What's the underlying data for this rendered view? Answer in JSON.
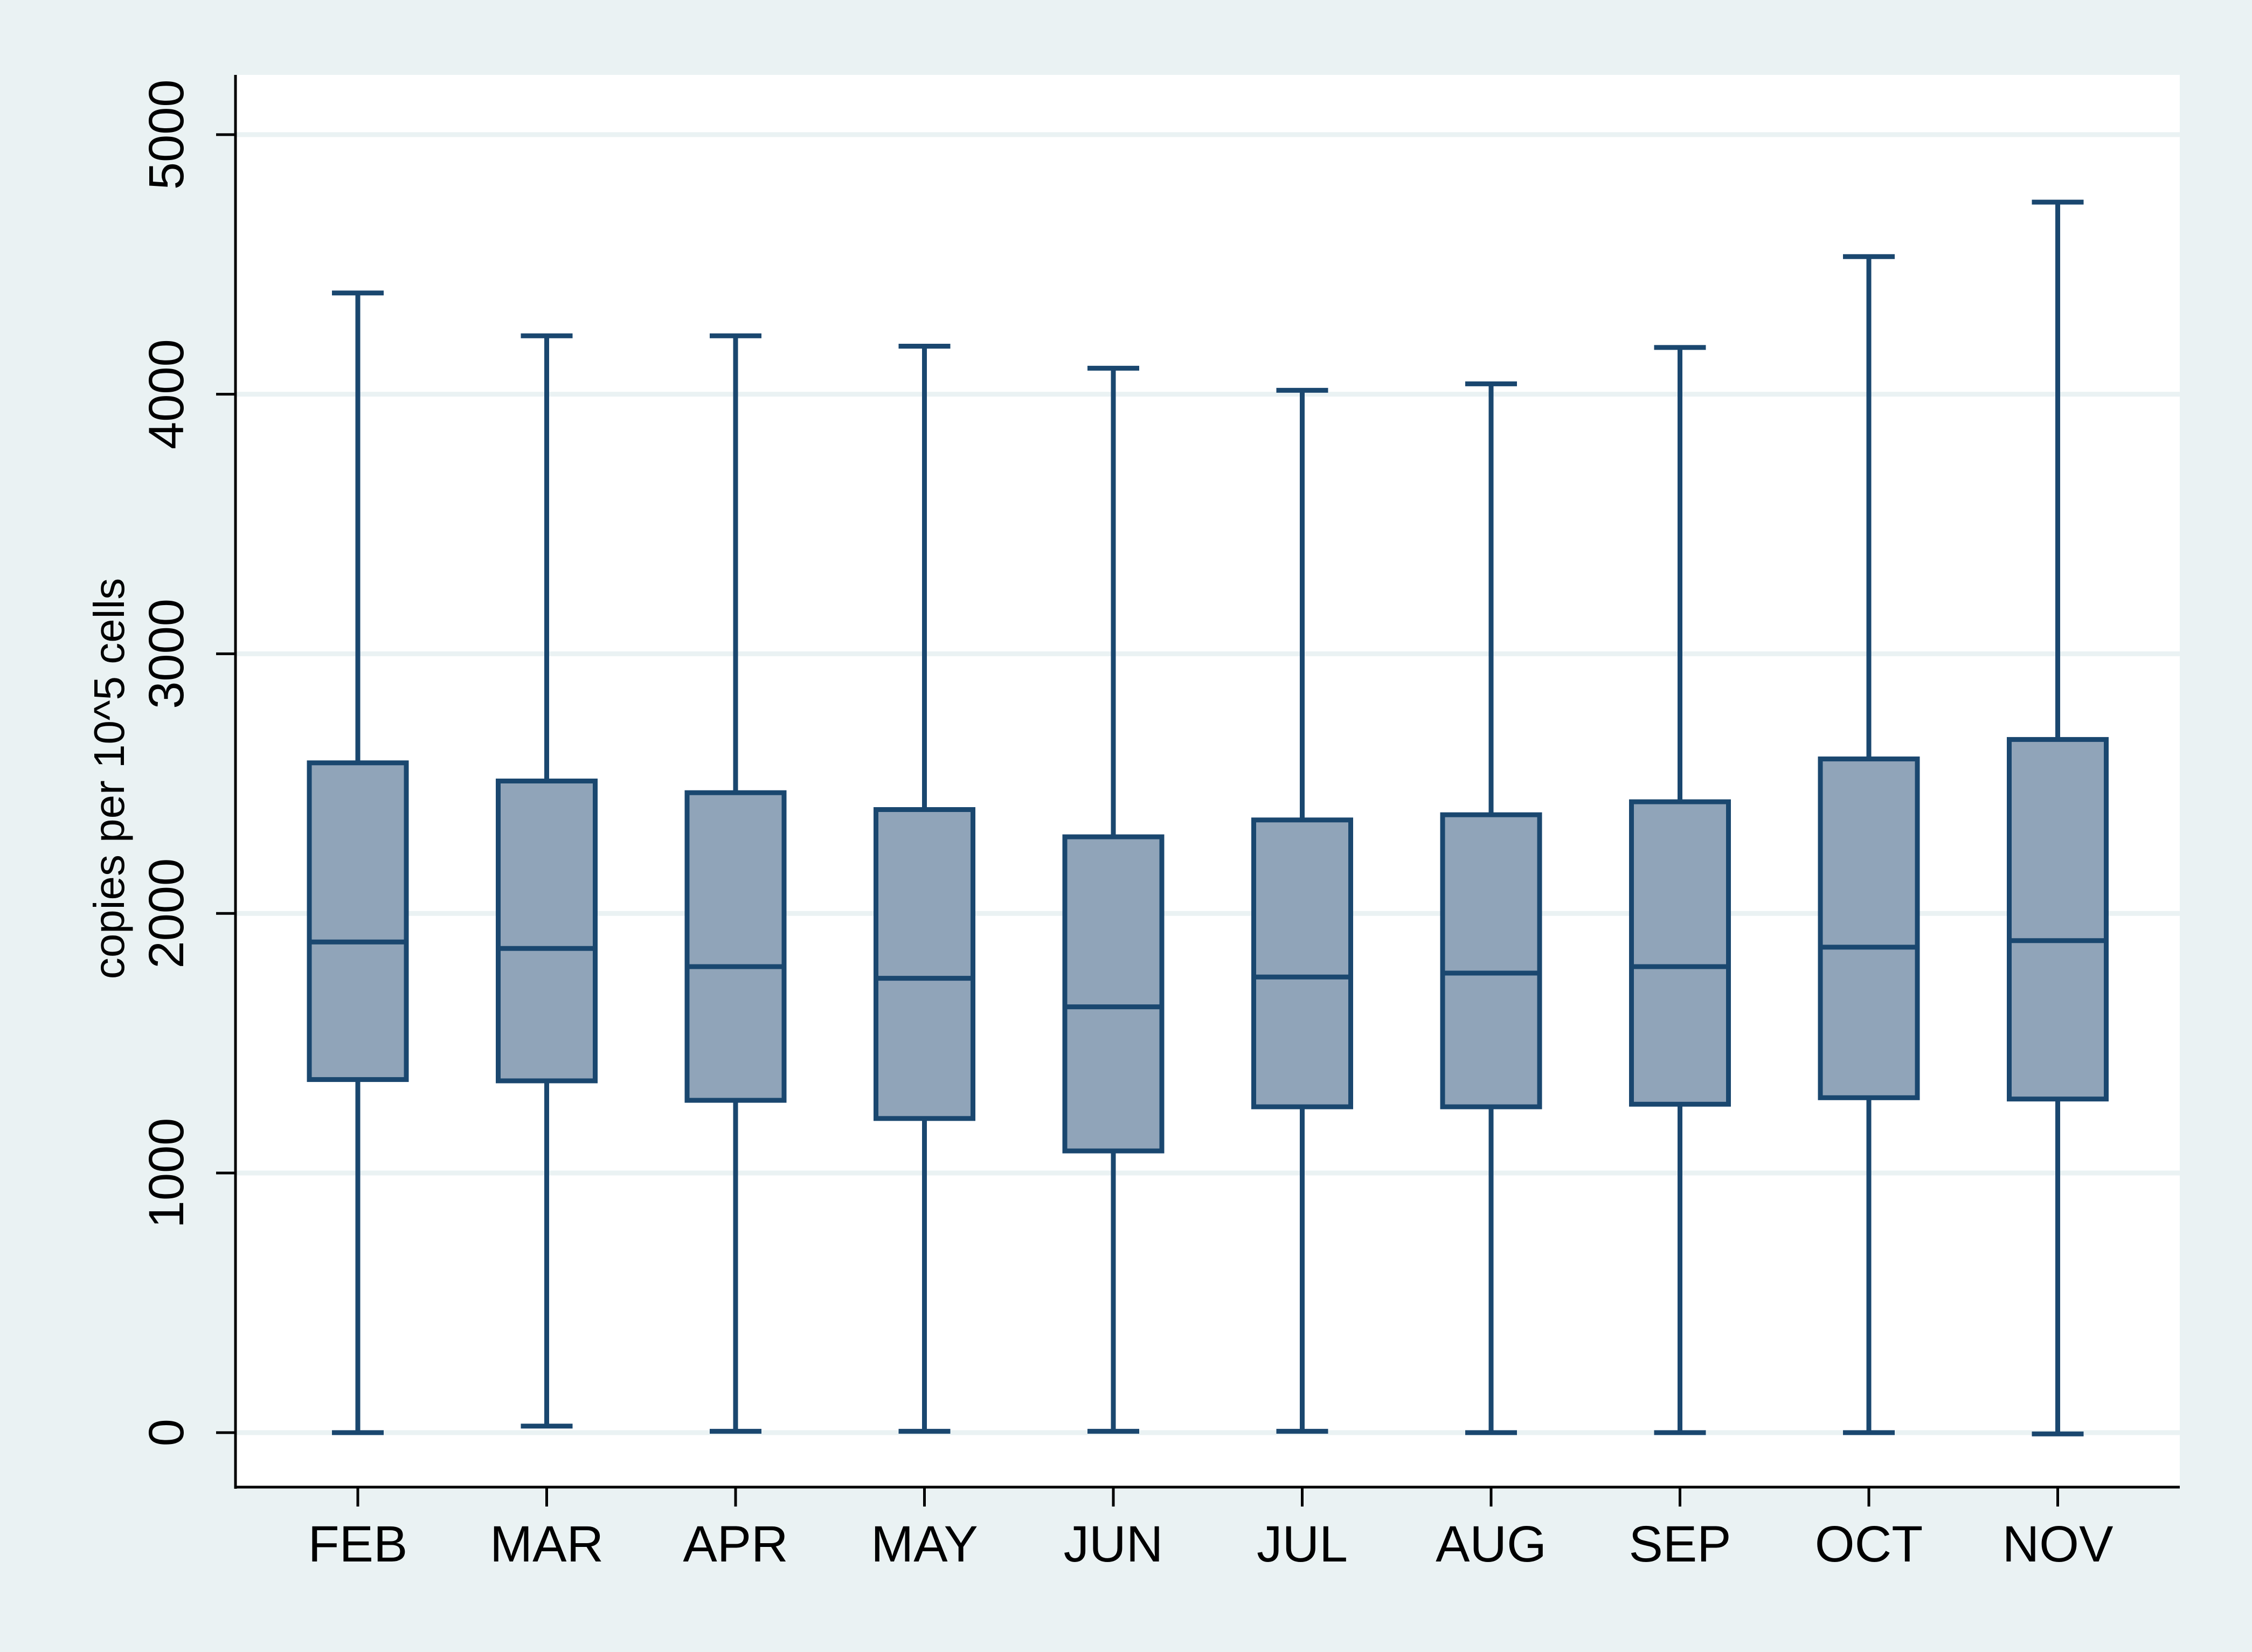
{
  "colors": {
    "outer_background": "#EAF2F3",
    "plot_background": "#FFFFFF",
    "gridline": "#EAF2F3",
    "box_fill": "#90A4B9",
    "box_stroke": "#1A476F",
    "axis": "#000000"
  },
  "chart_data": {
    "type": "boxplot",
    "title": "",
    "xlabel": "",
    "ylabel": "copies per 10^5 cells",
    "ylim": [
      -210,
      5230
    ],
    "yticks": [
      0,
      1000,
      2000,
      3000,
      4000,
      5000
    ],
    "grid": true,
    "legend": "none",
    "categories": [
      "FEB",
      "MAR",
      "APR",
      "MAY",
      "JUN",
      "JUL",
      "AUG",
      "SEP",
      "OCT",
      "NOV"
    ],
    "boxes": [
      {
        "label": "FEB",
        "whisker_low": 0,
        "q1": 1360,
        "median": 1890,
        "q3": 2580,
        "whisker_high": 4390
      },
      {
        "label": "MAR",
        "whisker_low": 25,
        "q1": 1355,
        "median": 1865,
        "q3": 2510,
        "whisker_high": 4225
      },
      {
        "label": "APR",
        "whisker_low": 5,
        "q1": 1280,
        "median": 1795,
        "q3": 2465,
        "whisker_high": 4225
      },
      {
        "label": "MAY",
        "whisker_low": 5,
        "q1": 1210,
        "median": 1750,
        "q3": 2400,
        "whisker_high": 4185
      },
      {
        "label": "JUN",
        "whisker_low": 5,
        "q1": 1085,
        "median": 1640,
        "q3": 2295,
        "whisker_high": 4100
      },
      {
        "label": "JUL",
        "whisker_low": 5,
        "q1": 1255,
        "median": 1755,
        "q3": 2360,
        "whisker_high": 4015
      },
      {
        "label": "AUG",
        "whisker_low": 0,
        "q1": 1255,
        "median": 1770,
        "q3": 2380,
        "whisker_high": 4040
      },
      {
        "label": "SEP",
        "whisker_low": 0,
        "q1": 1265,
        "median": 1795,
        "q3": 2430,
        "whisker_high": 4180
      },
      {
        "label": "OCT",
        "whisker_low": 0,
        "q1": 1290,
        "median": 1870,
        "q3": 2595,
        "whisker_high": 4530
      },
      {
        "label": "NOV",
        "whisker_low": -5,
        "q1": 1285,
        "median": 1895,
        "q3": 2670,
        "whisker_high": 4740
      }
    ]
  }
}
